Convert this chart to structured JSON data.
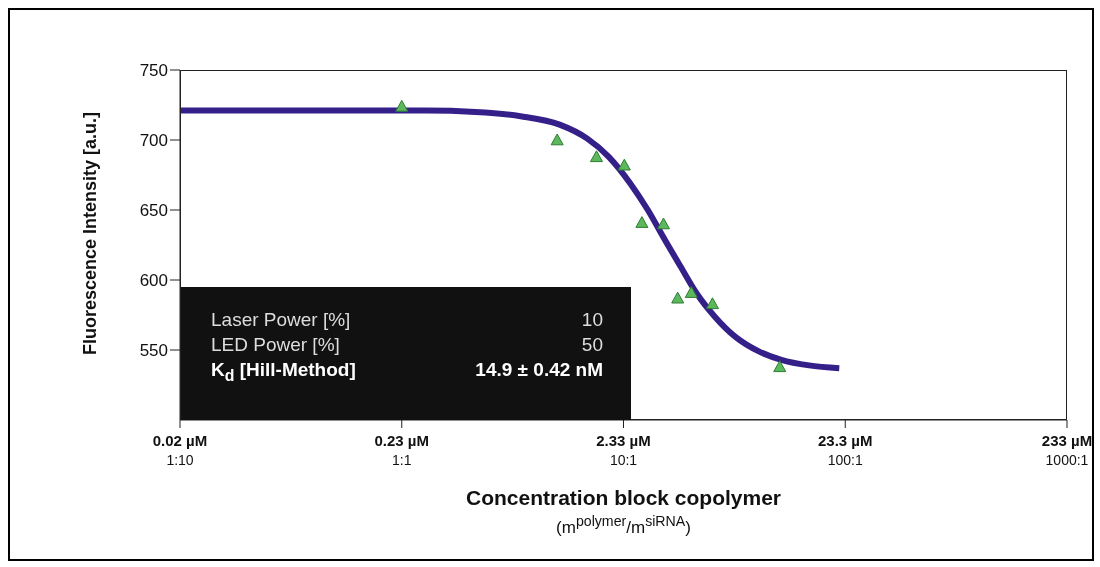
{
  "chart_data": {
    "type": "scatter",
    "ylabel": "Fluorescence Intensity [a.u.]",
    "xlabel": "Concentration block copolymer\n(m$^{polymer}$/m$^{siRNA}$)",
    "log": "x",
    "xlim": [
      0.0233,
      233
    ],
    "xticks": [
      {
        "value": 0.0233,
        "label": "0.02 µM"
      },
      {
        "value": 0.233,
        "label": "0.23 µM"
      },
      {
        "value": 2.33,
        "label": "2.33 µM"
      },
      {
        "value": 23.3,
        "label": "23.3 µM"
      },
      {
        "value": 233,
        "label": "233 µM"
      }
    ],
    "ylim": [
      500,
      750
    ],
    "yticks": [
      550,
      600,
      650,
      700,
      750
    ],
    "grid": false,
    "series": [
      {
        "type": "line",
        "color": "#35208a",
        "marker": "none",
        "line_style": "solid",
        "x": [
          0.0233,
          0.1,
          0.3,
          0.5,
          0.8,
          1.2,
          1.6,
          2.0,
          2.5,
          3.0,
          3.6,
          4.2,
          5,
          6,
          7.5,
          9.5,
          12,
          16,
          21.9
        ],
        "values": [
          721,
          721,
          721,
          720,
          717,
          711,
          701,
          688,
          669,
          650,
          628,
          610,
          590,
          574,
          559,
          549,
          543,
          539,
          537
        ]
      },
      {
        "color": "#5cb85c",
        "marker": "triangle",
        "x": [
          0.233,
          1.17,
          1.76,
          2.35,
          2.82,
          3.53,
          4.09,
          4.71,
          5.87,
          11.8
        ],
        "values": [
          724,
          700,
          688,
          682,
          641,
          640,
          587,
          591,
          583,
          538
        ]
      }
    ],
    "annotations": [
      "Laser Power [%]",
      "10",
      "LED Power  [%]",
      "50",
      "K$_{d}$ [Hill-Method]",
      "14.9 ± 0.42 nM",
      "1:10",
      "1:1",
      "10:1",
      "100:1",
      "1000:1"
    ]
  }
}
